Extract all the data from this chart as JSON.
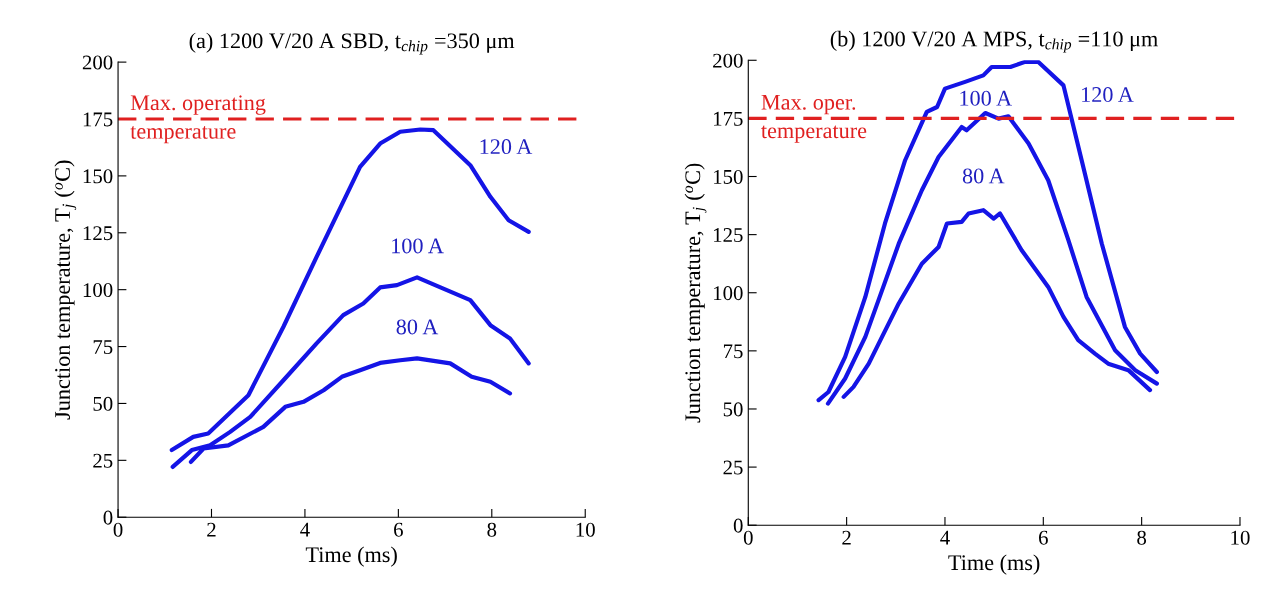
{
  "chart_data": [
    {
      "type": "line",
      "title": "(a) 1200 V/20 A SBD, t$_{chip}$ =350 μm",
      "xlabel": "Time (ms)",
      "ylabel": "Junction temperature, T$_{j}$ ($^{o}$C)",
      "xlim": [
        0,
        10
      ],
      "xticks": [
        0,
        2,
        4,
        6,
        8,
        10
      ],
      "ylim": [
        0,
        200
      ],
      "yticks": [
        0,
        25,
        50,
        75,
        100,
        125,
        150,
        175,
        200
      ],
      "grid": false,
      "legend": false,
      "marker": "none",
      "line_style": "solid",
      "ref_lines": [
        {
          "axis": "y",
          "value": 175,
          "label": "Max. operating\ntemperature",
          "color": "#e02020",
          "line_style": "dashed"
        }
      ],
      "series": [
        {
          "name": "120 A",
          "color": "#1414e6",
          "x": [
            1.15,
            1.61,
            1.93,
            2.79,
            3.54,
            4.25,
            5.18,
            5.61,
            6.04,
            6.47,
            6.75,
            7.54,
            7.97,
            8.36,
            8.79
          ],
          "values": [
            29.5,
            35.3,
            36.8,
            53.6,
            83.7,
            114.4,
            154,
            164.2,
            169.4,
            170.4,
            170.1,
            154.7,
            140.8,
            130.5,
            125.4
          ]
        },
        {
          "name": "100 A",
          "color": "#1414e6",
          "x": [
            1.17,
            1.58,
            1.97,
            2.4,
            2.83,
            3.54,
            4.25,
            4.82,
            5.25,
            5.61,
            5.97,
            6.4,
            6.9,
            7.54,
            7.97,
            8.39,
            8.79
          ],
          "values": [
            22.1,
            29.5,
            31.6,
            37.5,
            44.1,
            60.2,
            76.4,
            88.8,
            93.9,
            101,
            102,
            105.4,
            101,
            95.4,
            84.4,
            78.5,
            67.6
          ]
        },
        {
          "name": "80 A",
          "color": "#1414e6",
          "x": [
            1.56,
            1.83,
            2.36,
            3.11,
            3.58,
            3.97,
            4.4,
            4.79,
            5.18,
            5.61,
            6.04,
            6.4,
            7.11,
            7.57,
            7.97,
            8.39
          ],
          "values": [
            24.3,
            30.2,
            31.6,
            39.7,
            48.5,
            50.7,
            55.8,
            61.7,
            64.6,
            67.8,
            69,
            69.8,
            67.6,
            61.7,
            59.5,
            54.4
          ]
        }
      ]
    },
    {
      "type": "line",
      "title": "(b) 1200 V/20 A MPS, t$_{chip}$ =110 μm",
      "xlabel": "Time (ms)",
      "ylabel": "Junction temperature, T$_{j}$ ($^{o}$C)",
      "xlim": [
        0,
        10
      ],
      "xticks": [
        0,
        2,
        4,
        6,
        8,
        10
      ],
      "ylim": [
        0,
        200
      ],
      "yticks": [
        0,
        25,
        50,
        75,
        100,
        125,
        150,
        175,
        200
      ],
      "grid": false,
      "legend": false,
      "marker": "none",
      "line_style": "solid",
      "ref_lines": [
        {
          "axis": "y",
          "value": 175,
          "label": "Max. oper.\ntemperature",
          "color": "#e02020",
          "line_style": "dashed"
        }
      ],
      "series": [
        {
          "name": "120 A",
          "color": "#1414e6",
          "x": [
            1.43,
            1.63,
            1.97,
            2.38,
            2.78,
            3.19,
            3.63,
            3.84,
            4.0,
            4.41,
            4.78,
            4.95,
            5.33,
            5.63,
            5.9,
            6.41,
            6.78,
            7.19,
            7.66,
            7.97,
            8.31
          ],
          "values": [
            53.8,
            57.3,
            72.4,
            98.2,
            129.8,
            157,
            177.8,
            179.9,
            187.8,
            190.7,
            193.5,
            197.1,
            197.1,
            199.3,
            199.3,
            189.2,
            157,
            121.1,
            85.3,
            73.8,
            65.9
          ]
        },
        {
          "name": "100 A",
          "color": "#1414e6",
          "x": [
            1.62,
            1.97,
            2.38,
            2.72,
            3.06,
            3.53,
            3.87,
            4.34,
            4.44,
            4.82,
            5.09,
            5.29,
            5.7,
            6.1,
            6.51,
            6.88,
            7.46,
            7.87,
            8.31
          ],
          "values": [
            52.3,
            63.1,
            81,
            101,
            121.1,
            144.1,
            158.4,
            171.3,
            169.9,
            177.3,
            174.9,
            175.9,
            164.2,
            148.4,
            122.6,
            98.2,
            75.3,
            66.7,
            60.9
          ]
        },
        {
          "name": "80 A",
          "color": "#1414e6",
          "x": [
            1.94,
            2.14,
            2.45,
            2.72,
            3.06,
            3.53,
            3.87,
            4.04,
            4.34,
            4.48,
            4.78,
            4.99,
            5.12,
            5.56,
            6.1,
            6.41,
            6.71,
            7.05,
            7.32,
            7.73,
            8.17
          ],
          "values": [
            55.2,
            59.5,
            69.5,
            81,
            95.4,
            112.5,
            119.7,
            129.8,
            130.5,
            134.1,
            135.5,
            131.9,
            134.1,
            118.3,
            102.5,
            89.6,
            79.6,
            73.8,
            69.5,
            66.7,
            58.1
          ]
        }
      ]
    }
  ]
}
